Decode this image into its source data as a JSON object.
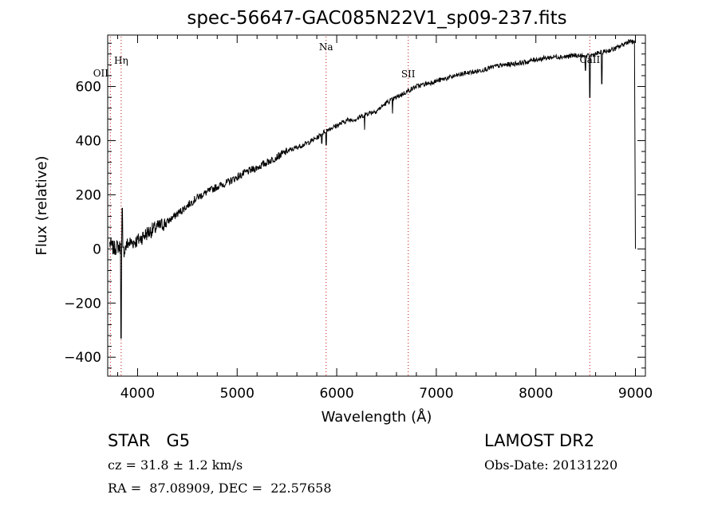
{
  "header": {
    "title": "spec-56647-GAC085N22V1_sp09-237.fits"
  },
  "info": {
    "object": "STAR   G5",
    "survey": "LAMOST DR2",
    "cz": "cz = 31.8 ± 1.2 km/s",
    "obs_date": "Obs-Date: 20131220",
    "radec": "RA =  87.08909, DEC =  22.57658"
  },
  "colors": {
    "spectrum": "#000000",
    "line_marker": "#cc3333",
    "axes": "#000000"
  },
  "chart_data": {
    "type": "line",
    "title": "spec-56647-GAC085N22V1_sp09-237.fits",
    "xlabel": "Wavelength (Å)",
    "ylabel": "Flux (relative)",
    "xlim": [
      3700,
      9100
    ],
    "ylim": [
      -470,
      790
    ],
    "xticks": [
      4000,
      5000,
      6000,
      7000,
      8000,
      9000
    ],
    "xtick_labels": [
      "4000",
      "5000",
      "6000",
      "7000",
      "8000",
      "9000"
    ],
    "yticks": [
      -400,
      -200,
      0,
      200,
      400,
      600
    ],
    "ytick_labels": [
      "−400",
      "−200",
      "0",
      "200",
      "400",
      "600"
    ],
    "grid": false,
    "spectral_lines": [
      {
        "name": "OII",
        "wavelength": 3727
      },
      {
        "name": "Hη",
        "wavelength": 3835
      },
      {
        "name": "Na",
        "wavelength": 5893
      },
      {
        "name": "SII",
        "wavelength": 6718
      },
      {
        "name": "CaII",
        "wavelength": 8542
      }
    ],
    "series": [
      {
        "x": [
          3720,
          3760,
          3800,
          3830,
          3850,
          3900,
          4000,
          4100,
          4200,
          4300,
          4400,
          4500,
          4600,
          4700,
          4800,
          4900,
          5000,
          5100,
          5200,
          5300,
          5400,
          5500,
          5600,
          5700,
          5800,
          5900,
          6000,
          6100,
          6200,
          6300,
          6400,
          6500,
          6600,
          6700,
          6800,
          6900,
          7000,
          7100,
          7200,
          7300,
          7400,
          7500,
          7600,
          7700,
          7800,
          7900,
          8000,
          8100,
          8200,
          8300,
          8400,
          8500,
          8600,
          8700,
          8800,
          8900,
          8950,
          8980,
          9000
        ],
        "y": [
          20,
          0,
          10,
          5,
          -15,
          20,
          30,
          60,
          80,
          100,
          130,
          160,
          190,
          210,
          230,
          245,
          265,
          285,
          300,
          320,
          340,
          360,
          375,
          390,
          410,
          440,
          455,
          475,
          480,
          500,
          510,
          540,
          560,
          580,
          600,
          610,
          620,
          630,
          640,
          650,
          655,
          665,
          675,
          680,
          685,
          690,
          700,
          705,
          710,
          710,
          715,
          710,
          720,
          730,
          740,
          760,
          770,
          760,
          0
        ]
      }
    ],
    "absorption_dips": [
      {
        "x": 3835,
        "y": -330
      },
      {
        "x": 3845,
        "y": 150
      },
      {
        "x": 5850,
        "y": 390
      },
      {
        "x": 5893,
        "y": 385
      },
      {
        "x": 6280,
        "y": 440
      },
      {
        "x": 6560,
        "y": 500
      },
      {
        "x": 8498,
        "y": 660
      },
      {
        "x": 8542,
        "y": 560
      },
      {
        "x": 8662,
        "y": 610
      }
    ]
  }
}
